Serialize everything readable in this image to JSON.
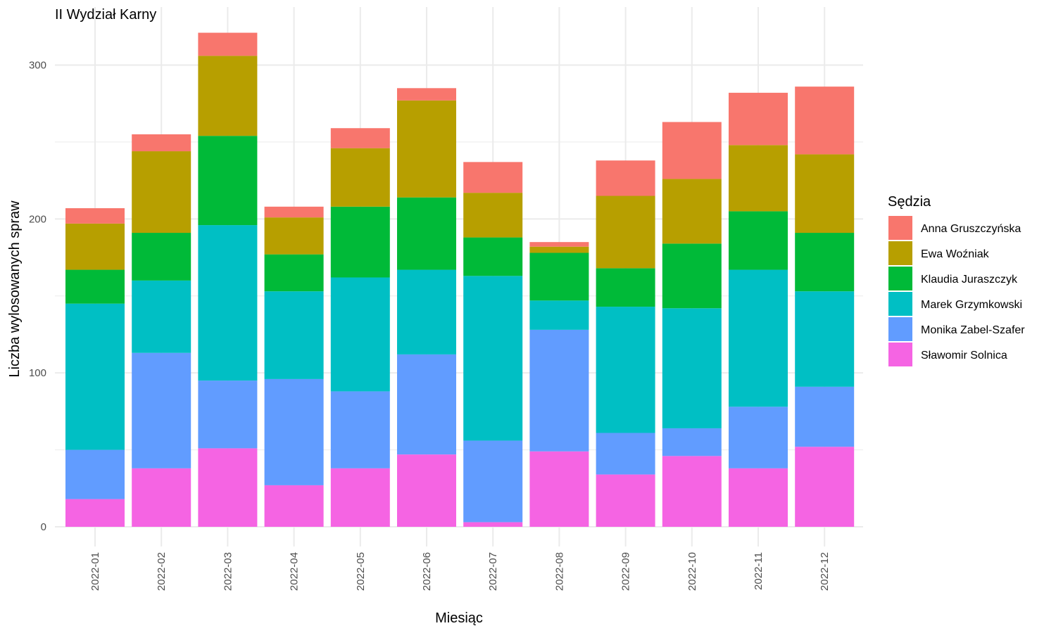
{
  "chart_data": {
    "type": "bar",
    "stacked": true,
    "title": "II Wydział Karny",
    "xlabel": "Miesiąc",
    "ylabel": "Liczba wylosowanych spraw",
    "ylim": [
      0,
      330
    ],
    "yticks": [
      0,
      100,
      200,
      300
    ],
    "grid": true,
    "legend_position": "right",
    "legend_title": "Sędzia",
    "categories": [
      "2022-01",
      "2022-02",
      "2022-03",
      "2022-04",
      "2022-05",
      "2022-06",
      "2022-07",
      "2022-08",
      "2022-09",
      "2022-10",
      "2022-11",
      "2022-12"
    ],
    "series": [
      {
        "name": "Sławomir Solnica",
        "color": "#F564E3",
        "values": [
          18,
          38,
          51,
          27,
          38,
          47,
          3,
          49,
          34,
          46,
          38,
          52
        ]
      },
      {
        "name": "Monika Zabel-Szafer",
        "color": "#619CFF",
        "values": [
          32,
          75,
          44,
          69,
          50,
          65,
          53,
          79,
          27,
          18,
          40,
          39
        ]
      },
      {
        "name": "Marek Grzymkowski",
        "color": "#00BFC4",
        "values": [
          95,
          47,
          101,
          57,
          74,
          55,
          107,
          19,
          82,
          78,
          89,
          62
        ]
      },
      {
        "name": "Klaudia Juraszczyk",
        "color": "#00BA38",
        "values": [
          22,
          31,
          58,
          24,
          46,
          47,
          25,
          31,
          25,
          42,
          38,
          38
        ]
      },
      {
        "name": "Ewa Woźniak",
        "color": "#B79F00",
        "values": [
          30,
          53,
          52,
          24,
          38,
          63,
          29,
          4,
          47,
          42,
          43,
          51
        ]
      },
      {
        "name": "Anna Gruszczyńska",
        "color": "#F8766D",
        "values": [
          10,
          11,
          15,
          7,
          13,
          8,
          20,
          3,
          23,
          37,
          34,
          44
        ]
      }
    ]
  }
}
